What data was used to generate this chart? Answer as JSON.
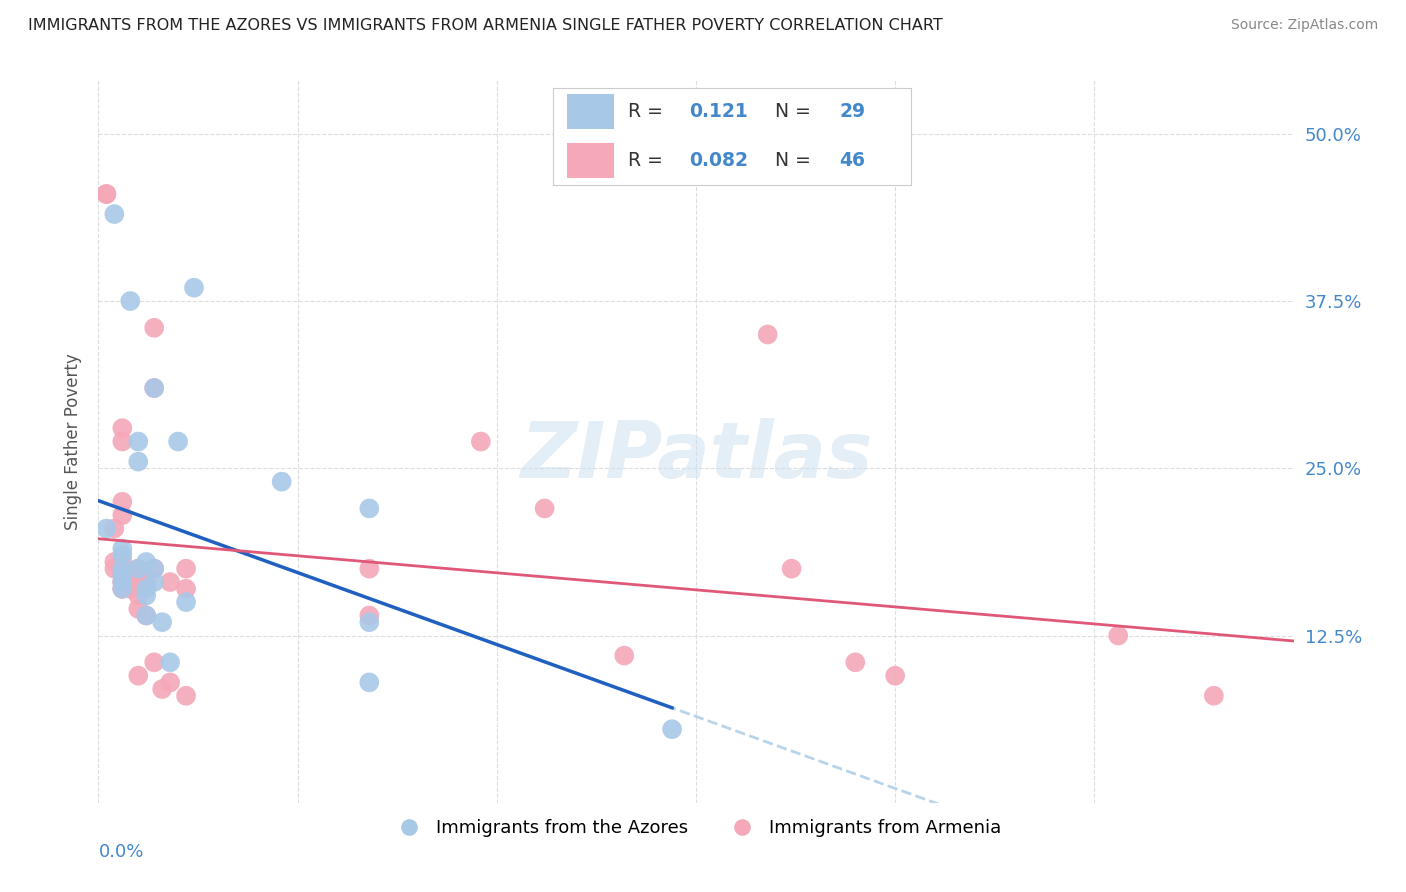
{
  "title": "IMMIGRANTS FROM THE AZORES VS IMMIGRANTS FROM ARMENIA SINGLE FATHER POVERTY CORRELATION CHART",
  "source": "Source: ZipAtlas.com",
  "ylabel": "Single Father Poverty",
  "xmin": 0.0,
  "xmax": 0.15,
  "ymin": 0.0,
  "ymax": 0.54,
  "watermark": "ZIPatlas",
  "azores_color": "#a8c8e8",
  "armenia_color": "#f4a8b8",
  "azores_line_color": "#2060c0",
  "armenia_line_color": "#e05878",
  "dashed_color": "#b8d4e8",
  "azores_r": "0.121",
  "azores_n": "29",
  "armenia_r": "0.082",
  "armenia_n": "46",
  "azores_points": [
    [
      0.001,
      0.205
    ],
    [
      0.002,
      0.44
    ],
    [
      0.003,
      0.185
    ],
    [
      0.003,
      0.19
    ],
    [
      0.003,
      0.175
    ],
    [
      0.003,
      0.17
    ],
    [
      0.003,
      0.165
    ],
    [
      0.003,
      0.16
    ],
    [
      0.004,
      0.375
    ],
    [
      0.005,
      0.27
    ],
    [
      0.005,
      0.255
    ],
    [
      0.005,
      0.175
    ],
    [
      0.006,
      0.18
    ],
    [
      0.006,
      0.16
    ],
    [
      0.006,
      0.155
    ],
    [
      0.006,
      0.14
    ],
    [
      0.007,
      0.31
    ],
    [
      0.007,
      0.175
    ],
    [
      0.007,
      0.165
    ],
    [
      0.008,
      0.135
    ],
    [
      0.009,
      0.105
    ],
    [
      0.01,
      0.27
    ],
    [
      0.011,
      0.15
    ],
    [
      0.012,
      0.385
    ],
    [
      0.023,
      0.24
    ],
    [
      0.034,
      0.22
    ],
    [
      0.034,
      0.135
    ],
    [
      0.034,
      0.09
    ],
    [
      0.072,
      0.055
    ]
  ],
  "armenia_points": [
    [
      0.001,
      0.455
    ],
    [
      0.001,
      0.455
    ],
    [
      0.002,
      0.205
    ],
    [
      0.002,
      0.18
    ],
    [
      0.002,
      0.175
    ],
    [
      0.003,
      0.28
    ],
    [
      0.003,
      0.27
    ],
    [
      0.003,
      0.225
    ],
    [
      0.003,
      0.215
    ],
    [
      0.003,
      0.18
    ],
    [
      0.003,
      0.17
    ],
    [
      0.003,
      0.165
    ],
    [
      0.003,
      0.165
    ],
    [
      0.003,
      0.16
    ],
    [
      0.003,
      0.16
    ],
    [
      0.004,
      0.17
    ],
    [
      0.004,
      0.165
    ],
    [
      0.004,
      0.16
    ],
    [
      0.005,
      0.175
    ],
    [
      0.005,
      0.17
    ],
    [
      0.005,
      0.155
    ],
    [
      0.005,
      0.145
    ],
    [
      0.005,
      0.095
    ],
    [
      0.006,
      0.165
    ],
    [
      0.006,
      0.14
    ],
    [
      0.007,
      0.355
    ],
    [
      0.007,
      0.31
    ],
    [
      0.007,
      0.175
    ],
    [
      0.007,
      0.105
    ],
    [
      0.008,
      0.085
    ],
    [
      0.009,
      0.165
    ],
    [
      0.009,
      0.09
    ],
    [
      0.011,
      0.175
    ],
    [
      0.011,
      0.16
    ],
    [
      0.011,
      0.08
    ],
    [
      0.034,
      0.175
    ],
    [
      0.034,
      0.14
    ],
    [
      0.048,
      0.27
    ],
    [
      0.056,
      0.22
    ],
    [
      0.066,
      0.11
    ],
    [
      0.084,
      0.35
    ],
    [
      0.087,
      0.175
    ],
    [
      0.095,
      0.105
    ],
    [
      0.1,
      0.095
    ],
    [
      0.128,
      0.125
    ],
    [
      0.14,
      0.08
    ]
  ]
}
